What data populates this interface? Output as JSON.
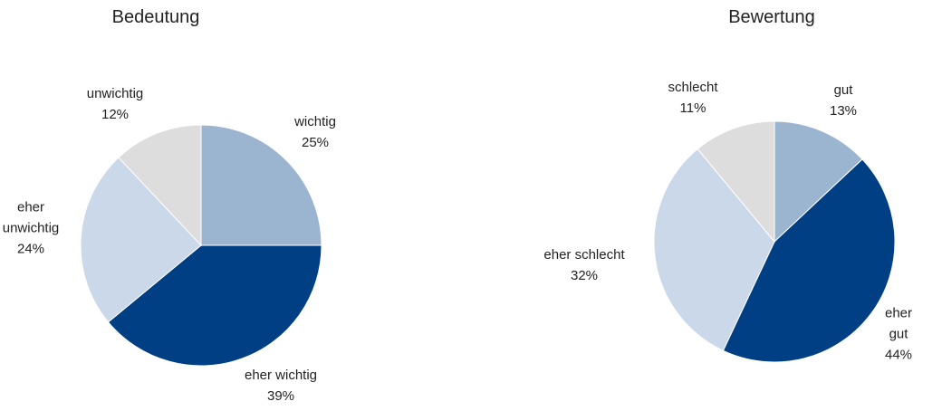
{
  "colors": {
    "light_gray": "#dddddd",
    "steel_blue": "#9bb4cf",
    "navy": "#003f84",
    "pale_blue": "#cad8ea"
  },
  "chart_data": [
    {
      "type": "pie",
      "title": "Bedeutung",
      "slices": [
        {
          "label": "wichtig",
          "value": 25,
          "value_label": "25%",
          "color": "#9bb4cf"
        },
        {
          "label": "eher wichtig",
          "value": 39,
          "value_label": "39%",
          "color": "#003f84"
        },
        {
          "label": "eher\nunwichtig",
          "value": 24,
          "value_label": "24%",
          "color": "#cad8ea"
        },
        {
          "label": "unwichtig",
          "value": 12,
          "value_label": "12%",
          "color": "#dddddd"
        }
      ],
      "start": "12 o'clock",
      "direction": "clockwise",
      "legend": "none"
    },
    {
      "type": "pie",
      "title": "Bewertung",
      "slices": [
        {
          "label": "gut",
          "value": 13,
          "value_label": "13%",
          "color": "#9bb4cf"
        },
        {
          "label": "eher gut",
          "value": 44,
          "value_label": "44%",
          "color": "#003f84"
        },
        {
          "label": "eher schlecht",
          "value": 32,
          "value_label": "32%",
          "color": "#cad8ea"
        },
        {
          "label": "schlecht",
          "value": 11,
          "value_label": "11%",
          "color": "#dddddd"
        }
      ],
      "start": "12 o'clock",
      "direction": "clockwise",
      "legend": "none"
    }
  ]
}
